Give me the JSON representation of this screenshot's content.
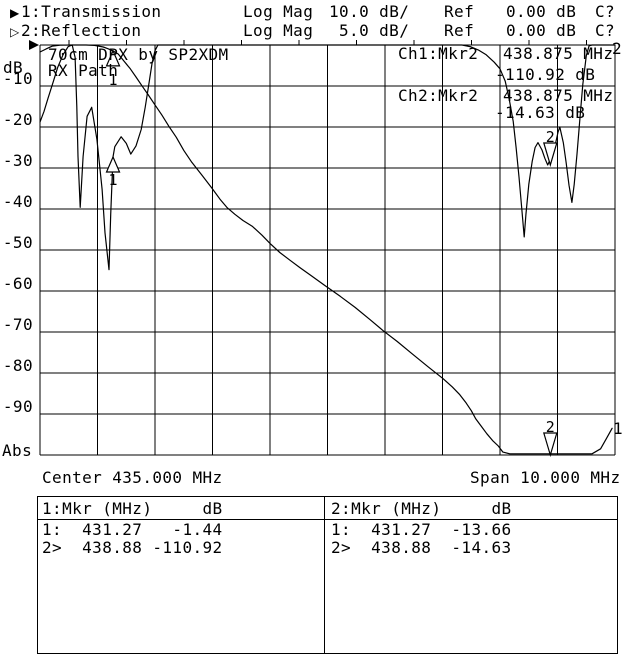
{
  "header": {
    "ch1": {
      "arrow": "▶",
      "label": "1:Transmission",
      "format": "Log Mag",
      "scale": "10.0 dB/",
      "ref_label": "Ref",
      "ref_value": "0.00 dB",
      "cal_status": "C?"
    },
    "ch2": {
      "arrow": "▷",
      "label": "2:Reflection",
      "format": "Log Mag",
      "scale": "5.0 dB/",
      "ref_label": "Ref",
      "ref_value": "0.00 dB",
      "cal_status": "C?"
    }
  },
  "axis": {
    "unit": "dB",
    "bottom": "Abs",
    "ticks": [
      "-10",
      "-20",
      "-30",
      "-40",
      "-50",
      "-60",
      "-70",
      "-80",
      "-90"
    ]
  },
  "annotations": {
    "title_line1": "70cm DPX by SP2XDM",
    "title_line2": "RX Path",
    "ch1_readout": {
      "label": "Ch1:Mkr2",
      "freq": "438.875 MHz",
      "value": "-110.92 dB"
    },
    "ch2_readout": {
      "label": "Ch2:Mkr2",
      "freq": "438.875 MHz",
      "value": "-14.63 dB"
    },
    "trace1_edge": "1",
    "trace2_edge": "2"
  },
  "footer": {
    "center": "Center 435.000 MHz",
    "span": "Span 10.000 MHz"
  },
  "marker_tables": [
    {
      "header": "1:Mkr (MHz)     dB",
      "rows": [
        "1:  431.27   -1.44",
        "2>  438.88 -110.92"
      ]
    },
    {
      "header": "2:Mkr (MHz)     dB",
      "rows": [
        "1:  431.27  -13.66",
        "2>  438.88  -14.63"
      ]
    }
  ],
  "chart_data": {
    "type": "line",
    "title": "70cm DPX by SP2XDM - RX Path",
    "x_axis": {
      "unit": "MHz",
      "center": 435.0,
      "span": 10.0,
      "min": 430.0,
      "max": 440.0,
      "divisions": 10,
      "center_label": "Center 435.000 MHz",
      "span_label": "Span 10.000 MHz"
    },
    "y_axis": {
      "unit": "dB",
      "divisions": 10,
      "grid": true,
      "ch1": {
        "name": "Transmission",
        "scale_db_per_div": 10.0,
        "ref_db": 0.0,
        "range": [
          0,
          -100
        ]
      },
      "ch2": {
        "name": "Reflection",
        "scale_db_per_div": 5.0,
        "ref_db": 0.0,
        "range": [
          0,
          -50
        ]
      }
    },
    "series": [
      {
        "name": "Transmission",
        "channel": "ch1",
        "points": [
          [
            430.0,
            -1.7
          ],
          [
            430.1,
            -1.0
          ],
          [
            430.21,
            -0.3
          ],
          [
            430.35,
            -0.05
          ],
          [
            430.55,
            0.0
          ],
          [
            430.8,
            0.0
          ],
          [
            430.95,
            -0.1
          ],
          [
            431.1,
            -0.5
          ],
          [
            431.18,
            -0.9
          ],
          [
            431.27,
            -1.44
          ],
          [
            431.36,
            -2.2
          ],
          [
            431.46,
            -3.9
          ],
          [
            431.57,
            -5.8
          ],
          [
            431.67,
            -7.8
          ],
          [
            431.77,
            -9.9
          ],
          [
            431.88,
            -12.1
          ],
          [
            432.0,
            -14.6
          ],
          [
            432.12,
            -17.1
          ],
          [
            432.24,
            -19.8
          ],
          [
            432.37,
            -22.5
          ],
          [
            432.5,
            -25.7
          ],
          [
            432.64,
            -28.6
          ],
          [
            432.82,
            -31.8
          ],
          [
            432.99,
            -34.9
          ],
          [
            433.13,
            -37.6
          ],
          [
            433.25,
            -39.6
          ],
          [
            433.39,
            -41.3
          ],
          [
            433.53,
            -42.8
          ],
          [
            433.69,
            -44.2
          ],
          [
            433.86,
            -46.4
          ],
          [
            434.0,
            -48.4
          ],
          [
            434.17,
            -50.6
          ],
          [
            434.35,
            -52.5
          ],
          [
            434.52,
            -54.3
          ],
          [
            434.71,
            -56.2
          ],
          [
            434.96,
            -58.7
          ],
          [
            435.22,
            -61.3
          ],
          [
            435.48,
            -64.0
          ],
          [
            435.74,
            -67.0
          ],
          [
            435.97,
            -69.7
          ],
          [
            436.21,
            -72.3
          ],
          [
            436.47,
            -75.3
          ],
          [
            436.75,
            -78.5
          ],
          [
            437.01,
            -81.4
          ],
          [
            437.17,
            -83.4
          ],
          [
            437.3,
            -85.3
          ],
          [
            437.41,
            -87.3
          ],
          [
            437.5,
            -89.2
          ],
          [
            437.58,
            -91.2
          ],
          [
            437.67,
            -92.9
          ],
          [
            437.77,
            -94.8
          ],
          [
            437.88,
            -96.6
          ],
          [
            437.97,
            -97.8
          ],
          [
            438.05,
            -99.3
          ],
          [
            438.17,
            -99.7
          ],
          [
            439.6,
            -99.7
          ],
          [
            439.75,
            -98.5
          ],
          [
            439.85,
            -96.0
          ],
          [
            439.95,
            -93.5
          ]
        ]
      },
      {
        "name": "Reflection",
        "channel": "ch2",
        "points": [
          [
            430.0,
            -9.4
          ],
          [
            430.07,
            -8.1
          ],
          [
            430.14,
            -6.5
          ],
          [
            430.23,
            -4.5
          ],
          [
            430.31,
            -2.7
          ],
          [
            430.4,
            -1.2
          ],
          [
            430.49,
            -0.2
          ],
          [
            430.56,
            0.0
          ],
          [
            430.61,
            -1.5
          ],
          [
            430.64,
            -7.5
          ],
          [
            430.66,
            -13.6
          ],
          [
            430.7,
            -19.8
          ],
          [
            430.75,
            -13.6
          ],
          [
            430.82,
            -8.7
          ],
          [
            430.9,
            -7.6
          ],
          [
            430.99,
            -11.5
          ],
          [
            431.08,
            -17.6
          ],
          [
            431.13,
            -22.9
          ],
          [
            431.2,
            -27.4
          ],
          [
            431.23,
            -20.7
          ],
          [
            431.27,
            -13.66
          ],
          [
            431.3,
            -12.4
          ],
          [
            431.41,
            -11.2
          ],
          [
            431.5,
            -12.0
          ],
          [
            431.58,
            -13.3
          ],
          [
            431.67,
            -12.3
          ],
          [
            431.76,
            -10.3
          ],
          [
            431.83,
            -7.6
          ],
          [
            431.9,
            -4.5
          ],
          [
            431.95,
            -2.2
          ],
          [
            432.0,
            -0.7
          ],
          [
            432.05,
            0.0
          ],
          [
            437.34,
            0.0
          ],
          [
            437.48,
            -0.2
          ],
          [
            437.62,
            -0.6
          ],
          [
            437.76,
            -1.2
          ],
          [
            437.9,
            -2.1
          ],
          [
            438.0,
            -2.9
          ],
          [
            438.09,
            -4.4
          ],
          [
            438.16,
            -6.6
          ],
          [
            438.23,
            -9.3
          ],
          [
            438.28,
            -12.5
          ],
          [
            438.33,
            -16.1
          ],
          [
            438.38,
            -20.0
          ],
          [
            438.42,
            -23.4
          ],
          [
            438.45,
            -20.7
          ],
          [
            438.5,
            -17.0
          ],
          [
            438.56,
            -14.2
          ],
          [
            438.61,
            -12.5
          ],
          [
            438.66,
            -11.9
          ],
          [
            438.73,
            -12.8
          ],
          [
            438.78,
            -13.8
          ],
          [
            438.83,
            -14.63
          ],
          [
            438.89,
            -13.7
          ],
          [
            438.96,
            -12.2
          ],
          [
            439.01,
            -10.6
          ],
          [
            439.04,
            -10.0
          ],
          [
            439.1,
            -11.9
          ],
          [
            439.15,
            -14.3
          ],
          [
            439.2,
            -17.1
          ],
          [
            439.25,
            -19.2
          ],
          [
            439.29,
            -17.0
          ],
          [
            439.34,
            -13.3
          ],
          [
            439.39,
            -9.0
          ],
          [
            439.44,
            -4.8
          ],
          [
            439.5,
            -1.3
          ],
          [
            439.55,
            -0.1
          ],
          [
            439.6,
            0.0
          ],
          [
            440.0,
            0.0
          ]
        ]
      }
    ],
    "markers": {
      "ch1": [
        {
          "n": "1",
          "MHz": 431.27,
          "dB": -1.44
        },
        {
          "n": "2",
          "MHz": 438.875,
          "dB": -110.92
        }
      ],
      "ch2": [
        {
          "n": "1",
          "MHz": 431.27,
          "dB": -13.66
        },
        {
          "n": "2",
          "MHz": 438.875,
          "dB": -14.63
        }
      ]
    },
    "legend_position": "none"
  }
}
